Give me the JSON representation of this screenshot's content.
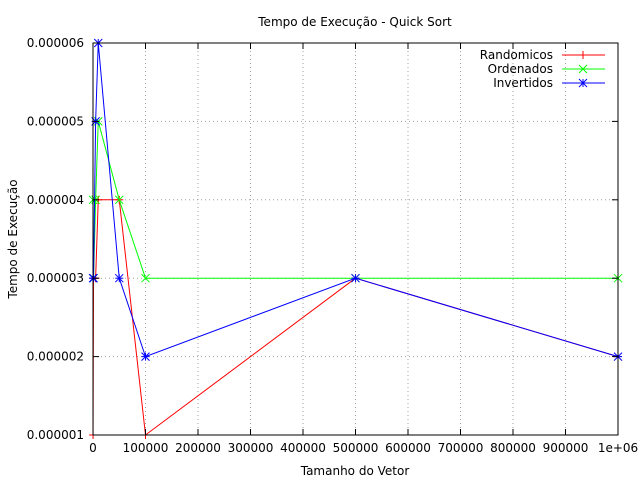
{
  "chart_data": {
    "type": "line",
    "title": "Tempo de Execução - Quick Sort",
    "xlabel": "Tamanho do Vetor",
    "ylabel": "Tempo de Execução",
    "xlim": [
      0,
      1000000
    ],
    "ylim": [
      1e-06,
      6e-06
    ],
    "xticks": [
      0,
      100000,
      200000,
      300000,
      400000,
      500000,
      600000,
      700000,
      800000,
      900000,
      1000000
    ],
    "xtick_labels": [
      "0",
      "100000",
      "200000",
      "300000",
      "400000",
      "500000",
      "600000",
      "700000",
      "800000",
      "900000",
      "1e+06"
    ],
    "yticks": [
      1e-06,
      2e-06,
      3e-06,
      4e-06,
      5e-06,
      6e-06
    ],
    "ytick_labels": [
      "0.000001",
      "0.000002",
      "0.000003",
      "0.000004",
      "0.000005",
      "0.000006"
    ],
    "grid": true,
    "legend_position": "top-right",
    "x": [
      100,
      1000,
      5000,
      10000,
      50000,
      100000,
      500000,
      1000000
    ],
    "series": [
      {
        "name": "Randomicos",
        "color": "#ff0000",
        "marker": "plus",
        "values": [
          1e-06,
          3e-06,
          3e-06,
          4e-06,
          4e-06,
          1e-06,
          3e-06,
          2e-06
        ]
      },
      {
        "name": "Ordenados",
        "color": "#00ff00",
        "marker": "cross",
        "values": [
          4e-06,
          3e-06,
          4e-06,
          5e-06,
          4e-06,
          3e-06,
          3e-06,
          3e-06
        ]
      },
      {
        "name": "Invertidos",
        "color": "#0000ff",
        "marker": "star",
        "values": [
          3e-06,
          3e-06,
          5e-06,
          6e-06,
          3e-06,
          2e-06,
          3e-06,
          2e-06
        ]
      }
    ]
  }
}
